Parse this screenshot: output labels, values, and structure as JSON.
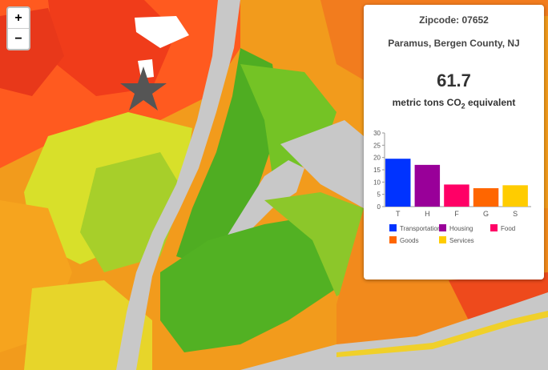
{
  "map": {
    "land_bg": "#f29b1c",
    "water_color": "#c8c8c8",
    "river_color": "#c8c8c8",
    "marker_icon": "star-icon"
  },
  "zoom": {
    "in_label": "+",
    "out_label": "−"
  },
  "panel": {
    "zipcode": "Zipcode: 07652",
    "place": "Paramus, Bergen County, NJ",
    "value": "61.7",
    "unit_main": "metric tons CO",
    "unit_sub": "2",
    "unit_tail": " equivalent"
  },
  "chart_data": {
    "type": "bar",
    "categories": [
      "T",
      "H",
      "F",
      "G",
      "S"
    ],
    "values": [
      19.5,
      17,
      9,
      7.5,
      8.7
    ],
    "colors": [
      "#0033ff",
      "#990099",
      "#ff0066",
      "#ff6600",
      "#ffcc00"
    ],
    "ylim": [
      0,
      30
    ],
    "yticks": [
      0,
      5,
      10,
      15,
      20,
      25,
      30
    ],
    "legend": [
      {
        "label": "Transportation",
        "color": "#0033ff"
      },
      {
        "label": "Housing",
        "color": "#990099"
      },
      {
        "label": "Food",
        "color": "#ff0066"
      },
      {
        "label": "Goods",
        "color": "#ff6600"
      },
      {
        "label": "Services",
        "color": "#ffcc00"
      }
    ],
    "legend_position": "bottom"
  }
}
